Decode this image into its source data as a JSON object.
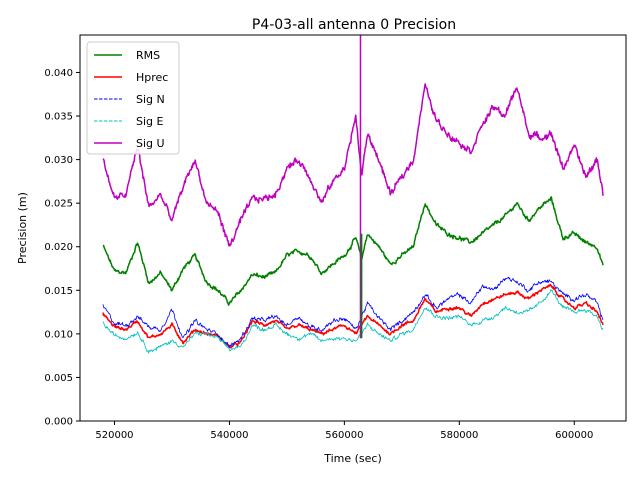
{
  "chart_data": {
    "type": "line",
    "title": "P4-03-all antenna 0 Precision",
    "xlabel": "Time (sec)",
    "ylabel": "Precision (m)",
    "xlim": [
      514000,
      609000
    ],
    "ylim": [
      0.0,
      0.0443
    ],
    "xticks": [
      520000,
      540000,
      560000,
      580000,
      600000
    ],
    "xtick_labels": [
      "520000",
      "540000",
      "560000",
      "580000",
      "600000"
    ],
    "yticks": [
      0.0,
      0.005,
      0.01,
      0.015,
      0.02,
      0.025,
      0.03,
      0.035,
      0.04
    ],
    "ytick_labels": [
      "0.000",
      "0.005",
      "0.010",
      "0.015",
      "0.020",
      "0.025",
      "0.030",
      "0.035",
      "0.040"
    ],
    "legend_position": "upper-left",
    "x": [
      518000,
      520000,
      522000,
      524000,
      526000,
      528000,
      530000,
      532000,
      534000,
      536000,
      538000,
      540000,
      542000,
      544000,
      546000,
      548000,
      550000,
      552000,
      554000,
      556000,
      558000,
      560000,
      562000,
      563000,
      564000,
      566000,
      568000,
      570000,
      572000,
      574000,
      576000,
      578000,
      580000,
      582000,
      584000,
      586000,
      588000,
      590000,
      592000,
      594000,
      596000,
      598000,
      600000,
      602000,
      604000,
      605000
    ],
    "series": [
      {
        "name": "RMS",
        "color": "#008000",
        "style": "solid",
        "width": 1.5,
        "values": [
          0.0201,
          0.0172,
          0.017,
          0.0205,
          0.0158,
          0.017,
          0.015,
          0.0175,
          0.019,
          0.016,
          0.015,
          0.0135,
          0.015,
          0.0168,
          0.0165,
          0.017,
          0.019,
          0.0195,
          0.019,
          0.017,
          0.018,
          0.019,
          0.021,
          0.0185,
          0.0215,
          0.02,
          0.018,
          0.019,
          0.02,
          0.025,
          0.0225,
          0.0215,
          0.021,
          0.0205,
          0.0215,
          0.0225,
          0.0235,
          0.025,
          0.023,
          0.0245,
          0.0255,
          0.021,
          0.0215,
          0.0205,
          0.02,
          0.0178
        ]
      },
      {
        "name": "Hprec",
        "color": "#ff0000",
        "style": "solid",
        "width": 1.5,
        "values": [
          0.0123,
          0.0108,
          0.0105,
          0.0115,
          0.0095,
          0.01,
          0.011,
          0.009,
          0.0105,
          0.01,
          0.0098,
          0.0085,
          0.009,
          0.0115,
          0.011,
          0.0115,
          0.0105,
          0.011,
          0.0105,
          0.01,
          0.0105,
          0.011,
          0.01,
          0.011,
          0.012,
          0.011,
          0.01,
          0.011,
          0.0115,
          0.014,
          0.0125,
          0.013,
          0.013,
          0.012,
          0.0135,
          0.014,
          0.0145,
          0.0148,
          0.014,
          0.015,
          0.0155,
          0.014,
          0.013,
          0.0135,
          0.0125,
          0.011
        ]
      },
      {
        "name": "Sig N",
        "color": "#0000ff",
        "style": "dashed",
        "width": 0.8,
        "values": [
          0.0132,
          0.0112,
          0.011,
          0.012,
          0.0108,
          0.0105,
          0.0128,
          0.0095,
          0.0115,
          0.0105,
          0.01,
          0.0085,
          0.0095,
          0.0118,
          0.0115,
          0.012,
          0.011,
          0.012,
          0.0108,
          0.0105,
          0.0115,
          0.0118,
          0.0105,
          0.012,
          0.0135,
          0.0118,
          0.0105,
          0.0115,
          0.0125,
          0.0145,
          0.013,
          0.014,
          0.0145,
          0.0135,
          0.0155,
          0.015,
          0.0165,
          0.016,
          0.015,
          0.016,
          0.016,
          0.0145,
          0.014,
          0.0145,
          0.0135,
          0.0115
        ]
      },
      {
        "name": "Sig E",
        "color": "#00bfbf",
        "style": "dashed",
        "width": 0.8,
        "values": [
          0.0112,
          0.0098,
          0.0095,
          0.0102,
          0.008,
          0.0085,
          0.0092,
          0.0085,
          0.01,
          0.01,
          0.0095,
          0.0082,
          0.0085,
          0.011,
          0.0105,
          0.011,
          0.01,
          0.0095,
          0.01,
          0.0092,
          0.0095,
          0.0095,
          0.0092,
          0.01,
          0.011,
          0.01,
          0.0092,
          0.01,
          0.0105,
          0.0132,
          0.012,
          0.0118,
          0.012,
          0.011,
          0.0115,
          0.012,
          0.013,
          0.0125,
          0.0125,
          0.0135,
          0.015,
          0.013,
          0.0125,
          0.0128,
          0.012,
          0.0105
        ]
      },
      {
        "name": "Sig U",
        "color": "#bf00bf",
        "style": "solid",
        "width": 1.5,
        "values": [
          0.03,
          0.0255,
          0.026,
          0.0315,
          0.0245,
          0.026,
          0.023,
          0.027,
          0.03,
          0.025,
          0.024,
          0.02,
          0.023,
          0.0255,
          0.0255,
          0.026,
          0.029,
          0.03,
          0.028,
          0.025,
          0.0275,
          0.029,
          0.035,
          0.028,
          0.033,
          0.03,
          0.026,
          0.028,
          0.03,
          0.0385,
          0.0345,
          0.033,
          0.032,
          0.031,
          0.034,
          0.036,
          0.035,
          0.0385,
          0.033,
          0.0325,
          0.033,
          0.029,
          0.0315,
          0.028,
          0.03,
          0.0262
        ]
      }
    ],
    "sig_u_spike": {
      "x": 562800,
      "y_min": 0.0095,
      "y_max": 0.0443
    },
    "rms_spike": {
      "x": 563000,
      "y_min": 0.0095,
      "y_max": 0.0215
    }
  }
}
